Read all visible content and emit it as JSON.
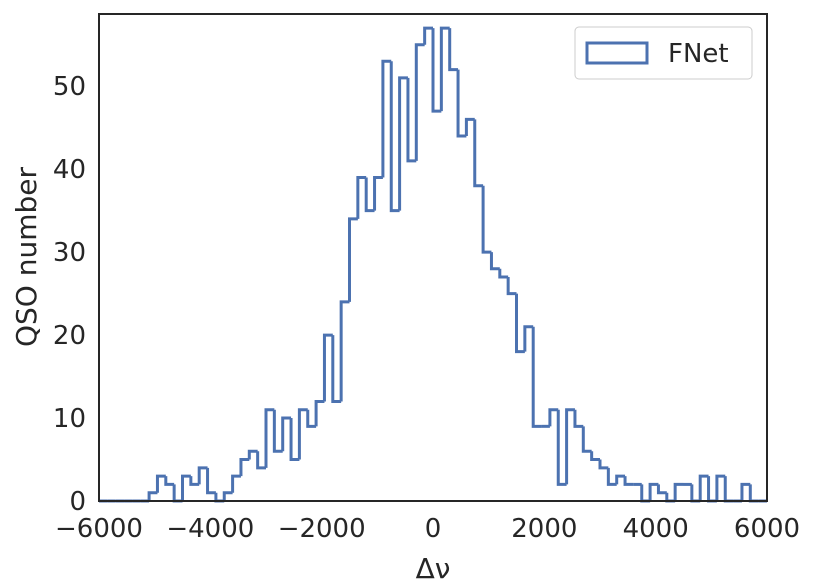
{
  "chart_data": {
    "type": "histogram",
    "title": "",
    "xlabel": "Δν",
    "ylabel": "QSO number",
    "xlim": [
      -6000,
      6000
    ],
    "ylim": [
      0,
      58.7
    ],
    "xticks": [
      -6000,
      -4000,
      -2000,
      0,
      2000,
      4000,
      6000
    ],
    "xtick_labels": [
      "−6000",
      "−4000",
      "−2000",
      "0",
      "2000",
      "4000",
      "6000"
    ],
    "yticks": [
      0,
      10,
      20,
      30,
      40,
      50
    ],
    "ytick_labels": [
      "0",
      "10",
      "20",
      "30",
      "40",
      "50"
    ],
    "grid": false,
    "legend_position": "top-right",
    "series": [
      {
        "name": "FNet",
        "color": "#4c72b0",
        "histtype": "step",
        "bin_width": 150,
        "bin_start": -6000,
        "counts": [
          0,
          0,
          0,
          0,
          0,
          0,
          1,
          3,
          2,
          0,
          3,
          2,
          4,
          1,
          0,
          1,
          3,
          5,
          6,
          4,
          11,
          6,
          10,
          5,
          11,
          9,
          12,
          20,
          12,
          24,
          34,
          39,
          35,
          39,
          53,
          35,
          51,
          41,
          55,
          57,
          47,
          57,
          52,
          44,
          46,
          38,
          30,
          28,
          27,
          25,
          18,
          21,
          9,
          9,
          11,
          2,
          11,
          9,
          6,
          5,
          4,
          2,
          3,
          2,
          2,
          0,
          2,
          1,
          0,
          2,
          2,
          0,
          3,
          0,
          3,
          0,
          0,
          2,
          0,
          0
        ]
      }
    ]
  }
}
